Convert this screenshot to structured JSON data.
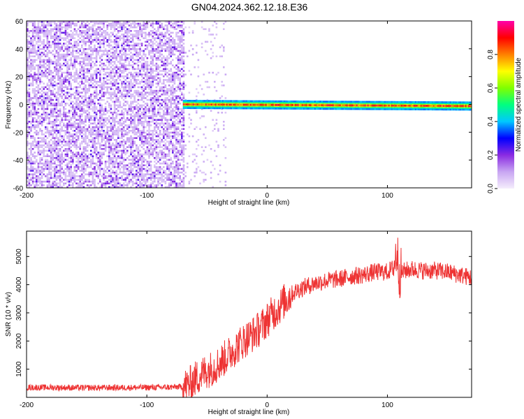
{
  "title": "GN04.2024.362.12.18.E36",
  "chart_data": [
    {
      "type": "heatmap",
      "title": "GN04.2024.362.12.18.E36",
      "xlabel": "Height of straight line (km)",
      "ylabel": "Frequency (Hz)",
      "xlim": [
        -200,
        170
      ],
      "ylim": [
        -60,
        60
      ],
      "xticks": [
        -200,
        -100,
        0,
        100
      ],
      "yticks": [
        -60,
        -40,
        -20,
        0,
        20,
        40,
        60
      ],
      "colorbar": {
        "label": "Normalized spectral amplitude",
        "range": [
          0,
          1
        ],
        "ticks": [
          0.0,
          0.2,
          0.4,
          0.6,
          0.8
        ],
        "tick_labels": [
          "0.0",
          "0.2",
          "0.4",
          "0.6",
          "0.8"
        ],
        "colormap": "rainbow",
        "colors": [
          "#f5eefc",
          "#c8a6f2",
          "#8a2be2",
          "#0000ff",
          "#00c8ff",
          "#00ff80",
          "#80ff00",
          "#ffff00",
          "#ff8000",
          "#ff0000",
          "#ff00aa"
        ]
      },
      "regions": [
        {
          "name": "noise",
          "x": [
            -200,
            -70
          ],
          "y": [
            -60,
            60
          ],
          "amplitude": 0.15
        },
        {
          "name": "signal band",
          "x": [
            -70,
            170
          ],
          "y": [
            -3,
            3
          ],
          "amplitude": 0.8
        }
      ]
    },
    {
      "type": "line",
      "xlabel": "Height of straight line (km)",
      "ylabel": "SNR (10 * v/v)",
      "xlim": [
        -200,
        170
      ],
      "ylim": [
        0,
        5900
      ],
      "xticks": [
        -200,
        -100,
        0,
        100
      ],
      "yticks": [
        1000,
        2000,
        3000,
        4000,
        5000
      ],
      "color": "#ee3333",
      "x": [
        -200,
        -180,
        -160,
        -140,
        -120,
        -100,
        -80,
        -70,
        -65,
        -60,
        -55,
        -50,
        -45,
        -40,
        -35,
        -30,
        -25,
        -20,
        -15,
        -10,
        -5,
        0,
        5,
        10,
        15,
        20,
        25,
        30,
        40,
        50,
        60,
        70,
        80,
        90,
        100,
        105,
        108,
        110,
        115,
        120,
        130,
        140,
        150,
        160,
        170
      ],
      "y": [
        350,
        350,
        340,
        340,
        345,
        350,
        360,
        380,
        450,
        650,
        800,
        950,
        1050,
        1200,
        1400,
        1600,
        1800,
        2000,
        2150,
        2300,
        2500,
        2750,
        3000,
        3200,
        3450,
        3650,
        3800,
        3900,
        4050,
        4150,
        4200,
        4300,
        4350,
        4450,
        4450,
        4600,
        5200,
        4400,
        4500,
        4550,
        4500,
        4500,
        4450,
        4350,
        4250
      ]
    }
  ]
}
